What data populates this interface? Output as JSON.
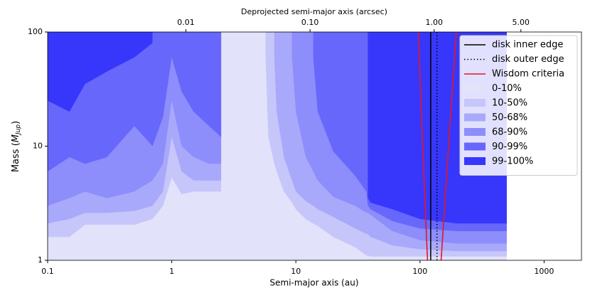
{
  "chart_data": {
    "type": "filled-contour",
    "xlabel": "Semi-major axis (au)",
    "ylabel": [
      "Mass (",
      "M",
      "Jup",
      ")"
    ],
    "x2label": "Deprojected semi-major axis  (arcsec)",
    "xscale": "log",
    "yscale": "log",
    "xlim": [
      0.1,
      2000
    ],
    "ylim": [
      1,
      100
    ],
    "xticks": [
      0.1,
      1,
      10,
      100,
      1000
    ],
    "yticks": [
      1,
      10,
      100
    ],
    "x2lim": [
      0.000769,
      15.38
    ],
    "x2ticks": [
      0.01,
      {
        "value": 0.1,
        "label": "0.10"
      },
      {
        "value": 1,
        "label": "1.00"
      },
      {
        "value": 5,
        "label": "5.00"
      }
    ],
    "legend": "upper right",
    "x": [
      0.1,
      0.15,
      0.2,
      0.3,
      0.5,
      0.7,
      0.85,
      1,
      1.2,
      1.5,
      2,
      2.5,
      2.6,
      5.7,
      6,
      6.7,
      7,
      8,
      9.3,
      10,
      12,
      13.8,
      15,
      20,
      30,
      37,
      38,
      40,
      60,
      100,
      200,
      500
    ],
    "lines": [
      {
        "name": "disk inner edge",
        "color": "#000000",
        "style": "solid",
        "x": 122
      },
      {
        "name": "disk  outer edge",
        "color": "#000000",
        "style": "dotted",
        "x": 137
      },
      {
        "name": "Wisdom criteria",
        "color": "#e8161e",
        "style": "solid",
        "xs": [
          97,
          105,
          115,
          null,
          148,
          170,
          196
        ],
        "ys": [
          100,
          10,
          1,
          null,
          1,
          10,
          100
        ]
      }
    ],
    "series": [
      {
        "name": "0-10%",
        "color": "#e2e2fa",
        "values": [
          1,
          1,
          1,
          1,
          1,
          1,
          1,
          1,
          1,
          1,
          1,
          1,
          1,
          1,
          1,
          1,
          1,
          1,
          1,
          1,
          1,
          1,
          1,
          1,
          1,
          1,
          1,
          1,
          1,
          1,
          1,
          1
        ]
      },
      {
        "name": "10-50%",
        "color": "#c6c6fb",
        "values": [
          1.6,
          1.6,
          2.05,
          2.05,
          2.05,
          2.3,
          3,
          5.3,
          3.8,
          4,
          4,
          4,
          null,
          60,
          12,
          7,
          6,
          4,
          3.2,
          2.8,
          2.3,
          2.1,
          2.0,
          1.6,
          1.3,
          1.1,
          1.1,
          1.08,
          1.08,
          1.08,
          1.08,
          1.08
        ]
      },
      {
        "name": "50-68%",
        "color": "#a9a9fb",
        "values": [
          2.1,
          2.3,
          2.6,
          2.6,
          2.7,
          3,
          4,
          12,
          6,
          5,
          5,
          5,
          null,
          null,
          null,
          60,
          20,
          8,
          5,
          4,
          3.3,
          3,
          2.8,
          2.4,
          1.9,
          1.7,
          1.7,
          1.6,
          1.35,
          1.25,
          1.2,
          1.2
        ]
      },
      {
        "name": "68-90%",
        "color": "#8d8dfb",
        "values": [
          3,
          3.5,
          4,
          3.5,
          4,
          5,
          7,
          25,
          10,
          8,
          7,
          7,
          null,
          null,
          null,
          null,
          null,
          null,
          60,
          20,
          8,
          6,
          5,
          3.6,
          3,
          2.6,
          2.6,
          2.5,
          1.8,
          1.5,
          1.4,
          1.4
        ]
      },
      {
        "name": "90-99%",
        "color": "#6767fb",
        "values": [
          6,
          8,
          7,
          8,
          15,
          10,
          18,
          60,
          30,
          20,
          15,
          12,
          null,
          null,
          null,
          null,
          null,
          null,
          null,
          null,
          null,
          60,
          20,
          9,
          5.5,
          4,
          3,
          2.8,
          2.2,
          1.9,
          1.8,
          1.8
        ]
      },
      {
        "name": "99-100%",
        "color": "#3737fb",
        "values": [
          25,
          20,
          35,
          45,
          60,
          80,
          null,
          null,
          null,
          null,
          null,
          null,
          null,
          null,
          null,
          null,
          null,
          null,
          null,
          null,
          null,
          null,
          null,
          null,
          null,
          null,
          3.5,
          3.2,
          2.8,
          2.3,
          2.1,
          2.1
        ]
      }
    ]
  }
}
